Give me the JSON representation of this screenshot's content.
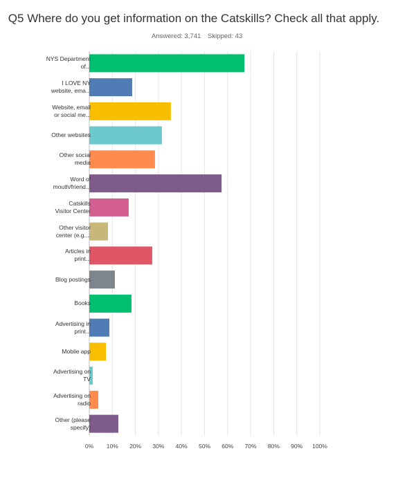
{
  "chart_data": {
    "type": "bar",
    "orientation": "horizontal",
    "title": "Q5 Where do you get information on the Catskills? Check all that apply.",
    "answered": "Answered: 3,741",
    "skipped": "Skipped: 43",
    "categories": [
      "NYS Department\nof...",
      "I LOVE NY\nwebsite, ema...",
      "Website, email\nor social me...",
      "Other websites",
      "Other social\nmedia",
      "Word of\nmouth/friend...",
      "Catskills\nVisitor Center",
      "Other visitor\ncenter (e.g....",
      "Articles in\nprint...",
      "Blog postings",
      "Books",
      "Advertising in\nprint...",
      "Mobile app",
      "Advertising on\nTV",
      "Advertising on\nradio",
      "Other (please\nspecify)"
    ],
    "values": [
      67.3,
      18.6,
      35.4,
      31.5,
      28.5,
      57.4,
      17.1,
      8.1,
      27.3,
      11.1,
      18.3,
      8.7,
      7.2,
      1.5,
      3.9,
      12.6
    ],
    "colors": [
      "#00bf6f",
      "#507cb6",
      "#f9be00",
      "#6bc8cd",
      "#ff8b4f",
      "#7f5b8b",
      "#d25f90",
      "#c7b879",
      "#e05666",
      "#7d868c",
      "#00bf6f",
      "#507cb6",
      "#f9be00",
      "#6bc8cd",
      "#ff8b4f",
      "#7f5b8b"
    ],
    "xlim": [
      0,
      100
    ],
    "xticks": [
      {
        "value": 0,
        "label": "0%"
      },
      {
        "value": 10,
        "label": "10%"
      },
      {
        "value": 20,
        "label": "20%"
      },
      {
        "value": 30,
        "label": "30%"
      },
      {
        "value": 40,
        "label": "40%"
      },
      {
        "value": 50,
        "label": "50%"
      },
      {
        "value": 60,
        "label": "60%"
      },
      {
        "value": 70,
        "label": "70%"
      },
      {
        "value": 80,
        "label": "80%"
      },
      {
        "value": 90,
        "label": "90%"
      },
      {
        "value": 100,
        "label": "100%"
      }
    ],
    "grid": true
  }
}
